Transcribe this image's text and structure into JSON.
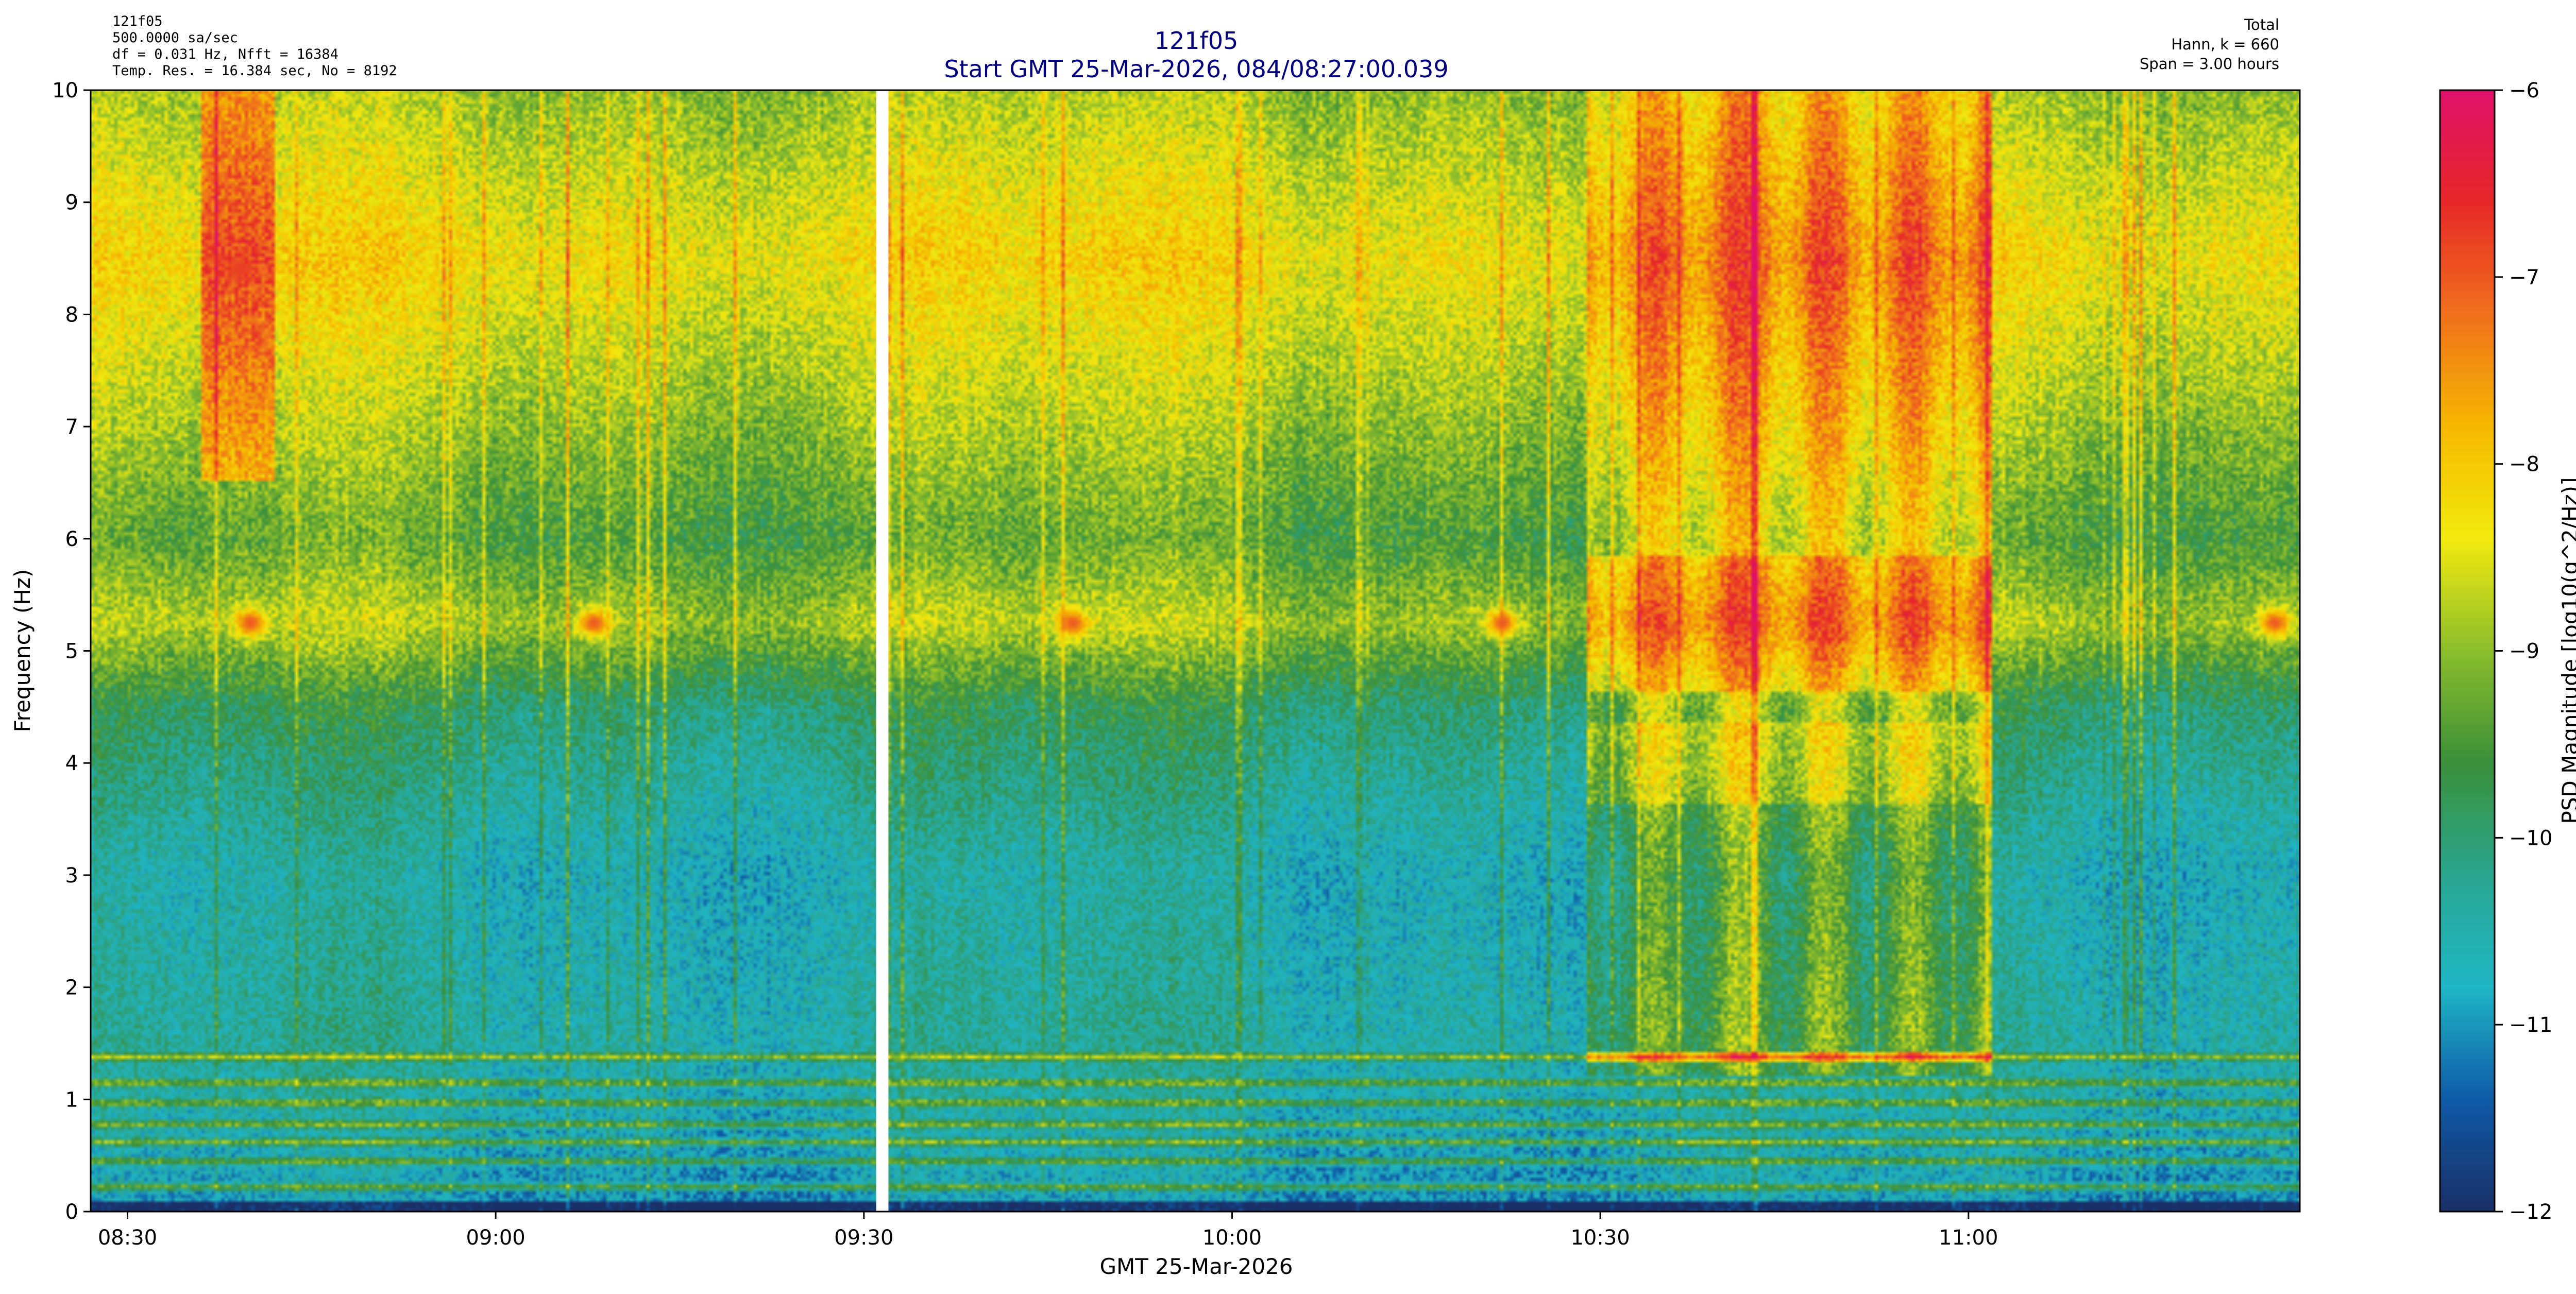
{
  "chart_data": {
    "type": "heatmap",
    "title": "121f05",
    "subtitle": "Start GMT 25-Mar-2026, 084/08:27:00.039",
    "info_left": [
      "121f05",
      "500.0000 sa/sec",
      "df = 0.031 Hz,  Nfft = 16384",
      "Temp. Res. = 16.384 sec, No = 8192"
    ],
    "info_right": [
      "Total",
      "Hann, k = 660",
      "Span = 3.00 hours"
    ],
    "xlabel": "GMT 25-Mar-2026",
    "ylabel": "Frequency (Hz)",
    "colorbar_label": "PSD Magnitude [log10(g^2/Hz)]",
    "x_tick_labels": [
      "08:30",
      "09:00",
      "09:30",
      "10:00",
      "10:30",
      "11:00"
    ],
    "x_tick_minutes": [
      3,
      33,
      63,
      93,
      123,
      153
    ],
    "xlim_minutes": [
      0,
      180
    ],
    "ylim": [
      0,
      10
    ],
    "y_ticks": [
      "0",
      "1",
      "2",
      "3",
      "4",
      "5",
      "6",
      "7",
      "8",
      "9",
      "10"
    ],
    "clim": [
      -12,
      -6
    ],
    "colorbar_ticks": [
      "−6",
      "−7",
      "−8",
      "−9",
      "−10",
      "−11",
      "−12"
    ],
    "colormap": [
      "#1a2f66",
      "#0f5aa5",
      "#1fb5c5",
      "#2aa68f",
      "#3a8f3a",
      "#8cbd2c",
      "#f2ea10",
      "#f5b800",
      "#f0701c",
      "#e62828",
      "#e0106a"
    ],
    "data_gap_minutes": [
      64,
      65
    ],
    "features": {
      "background_by_freq": [
        [
          0.0,
          -11.0
        ],
        [
          1.5,
          -10.4
        ],
        [
          3.0,
          -10.6
        ],
        [
          4.5,
          -9.9
        ],
        [
          5.25,
          -8.8
        ],
        [
          6.0,
          -9.4
        ],
        [
          7.0,
          -8.9
        ],
        [
          8.5,
          -8.2
        ],
        [
          10.0,
          -8.9
        ]
      ],
      "harmonic_lines_hz": [
        0.22,
        0.45,
        0.62,
        0.78,
        0.97,
        1.15,
        1.38
      ],
      "active_interval_minutes": [
        122,
        155
      ],
      "hot_spots": [
        {
          "t": 12,
          "f": 8.4,
          "v": -6.8
        },
        {
          "t": 13,
          "f": 5.25,
          "v": -7.0
        },
        {
          "t": 41,
          "f": 5.25,
          "v": -7.0
        },
        {
          "t": 80,
          "f": 5.25,
          "v": -7.0
        },
        {
          "t": 115,
          "f": 5.25,
          "v": -7.0
        },
        {
          "t": 178,
          "f": 5.25,
          "v": -7.0
        }
      ]
    }
  }
}
